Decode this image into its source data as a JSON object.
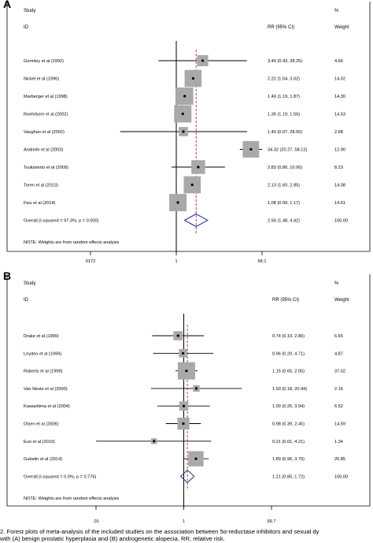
{
  "caption": {
    "line1": "2.  Forest plots of meta-analysis of the included studies on the association between 5α-reductase inhibitors and sexual dy",
    "line2": "with (A) benign prostatic hyperplasia and (B) androgenetic alopecia. RR, relative risk."
  },
  "chart_data": [
    {
      "type": "forest",
      "panel": "A",
      "headers": {
        "study": "Study",
        "id": "ID",
        "rr": "RR (95% CI)",
        "pct": "%",
        "weight": "Weight"
      },
      "axis_ticks": [
        "0172",
        "1",
        "58.1"
      ],
      "xlim": [
        0.0172,
        58.1
      ],
      "scale": "log",
      "overall_rr": 2.56,
      "note": "NOTE: Weights are from random effects analysis",
      "studies": [
        {
          "label": "Gormley et al  (1992)",
          "rr": 3.49,
          "lo": 0.43,
          "hi": 28.25,
          "ci_text": "3.49 (0.43, 28.25)",
          "weight": "4.66"
        },
        {
          "label": "Nickel et al  (1996)",
          "rr": 2.22,
          "lo": 1.64,
          "hi": 3.02,
          "ci_text": "2.22 (1.64, 3.02)",
          "weight": "14.02"
        },
        {
          "label": "Marberger et al (1998)",
          "rr": 1.49,
          "lo": 1.19,
          "hi": 1.87,
          "ci_text": "1.49 (1.19, 1.87)",
          "weight": "14.30"
        },
        {
          "label": "Roehrborn et al (2002)",
          "rr": 1.36,
          "lo": 1.19,
          "hi": 1.56,
          "ci_text": "1.36 (1.19, 1.56)",
          "weight": "14.53"
        },
        {
          "label": "Vaughan et al (2002)",
          "rr": 1.4,
          "lo": 0.07,
          "hi": 28.6,
          "ci_text": "1.40 (0.07, 28.60)",
          "weight": "2.68"
        },
        {
          "label": "Andriole et al (2003)",
          "rr": 34.32,
          "lo": 20.27,
          "hi": 58.12,
          "ci_text": "34.32 (20.27, 58.12)",
          "weight": "12.90"
        },
        {
          "label": "Tsukamoto et al (2009)",
          "rr": 2.83,
          "lo": 0.8,
          "hi": 10.0,
          "ci_text": "2.83 (0.80, 10.00)",
          "weight": "8.23"
        },
        {
          "label": "Toren et al (2013)",
          "rr": 2.13,
          "lo": 1.6,
          "hi": 2.85,
          "ci_text": "2.13 (1.60, 2.85)",
          "weight": "14.08"
        },
        {
          "label": "Fwu et al (2014)",
          "rr": 1.08,
          "lo": 0.99,
          "hi": 1.17,
          "ci_text": "1.08 (0.99, 1.17)",
          "weight": "14.61"
        }
      ],
      "overall": {
        "label": "Overall  (I-squared = 97.3%, p = 0.000)",
        "rr": 2.56,
        "lo": 1.48,
        "hi": 4.42,
        "ci_text": "2.56 (1.48, 4.42)",
        "weight": "100.00"
      }
    },
    {
      "type": "forest",
      "panel": "B",
      "headers": {
        "study": "Study",
        "id": "ID",
        "rr": "RR (95% CI)",
        "pct": "%",
        "weight": "Weight"
      },
      "axis_ticks": [
        ".01",
        "1",
        "99.7"
      ],
      "xlim": [
        0.01,
        99.7
      ],
      "scale": "log",
      "overall_rr": 1.21,
      "note": "NOTE: Weights are from random effects analysis",
      "studies": [
        {
          "label": "Drake et al (1999)",
          "rr": 0.74,
          "lo": 0.19,
          "hi": 2.86,
          "ci_text": "0.74 (0.19, 2.86)",
          "weight": "6.65"
        },
        {
          "label": "Leyden et al (1999)",
          "rr": 0.96,
          "lo": 0.2,
          "hi": 4.71,
          "ci_text": "0.96 (0.20, 4.71)",
          "weight": "4.87"
        },
        {
          "label": "Roberts et al (1999)",
          "rr": 1.15,
          "lo": 0.65,
          "hi": 2.05,
          "ci_text": "1.15 (0.65, 2.05)",
          "weight": "37.02"
        },
        {
          "label": "Van Neste et al (2000)",
          "rr": 1.93,
          "lo": 0.18,
          "hi": 20.94,
          "ci_text": "1.93 (0.18, 20.94)",
          "weight": "2.16"
        },
        {
          "label": "Kawashima et al (2004)",
          "rr": 1.0,
          "lo": 0.25,
          "hi": 3.94,
          "ci_text": "1.00 (0.25, 3.94)",
          "weight": "6.52"
        },
        {
          "label": "Olsen et al (2006)",
          "rr": 0.98,
          "lo": 0.39,
          "hi": 2.45,
          "ci_text": "0.98 (0.39, 2.45)",
          "weight": "14.59"
        },
        {
          "label": "Eun et al (2010)",
          "rr": 0.21,
          "lo": 0.01,
          "hi": 4.21,
          "ci_text": "0.21 (0.01, 4.21)",
          "weight": "1.34"
        },
        {
          "label": "Gubelin et al (2014)",
          "rr": 1.89,
          "lo": 0.96,
          "hi": 3.7,
          "ci_text": "1.89 (0.96, 3.70)",
          "weight": "26.85"
        }
      ],
      "overall": {
        "label": "Overall  (I-squared = 0.0%, p = 0.776)",
        "rr": 1.21,
        "lo": 0.85,
        "hi": 1.72,
        "ci_text": "1.21 (0.85, 1.72)",
        "weight": "100.00"
      }
    }
  ]
}
